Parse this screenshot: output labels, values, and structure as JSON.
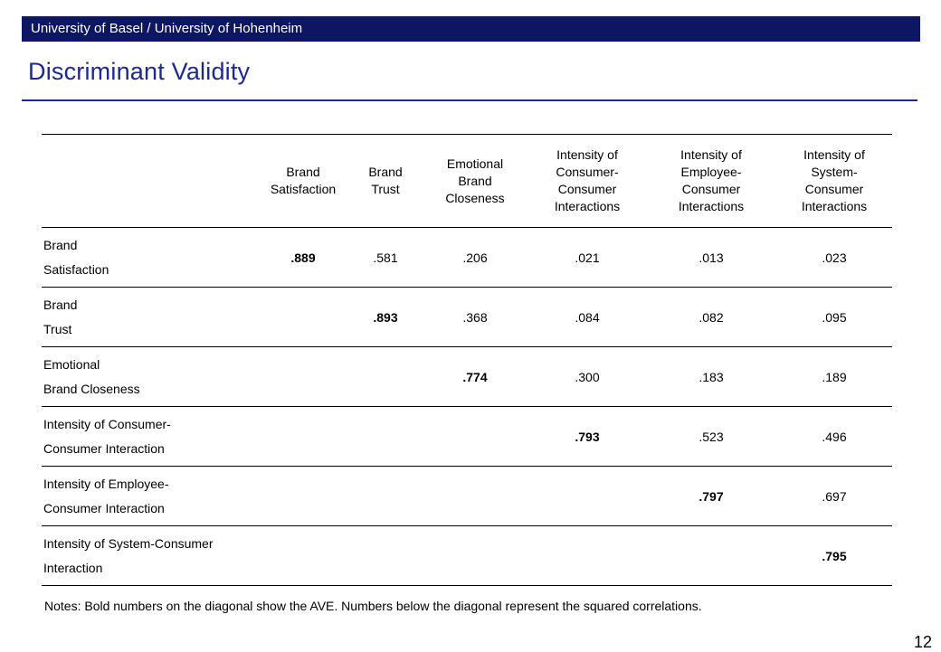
{
  "header": {
    "institution": "University of Basel / University of Hohenheim"
  },
  "slide": {
    "title": "Discriminant Validity",
    "page_number": "12"
  },
  "table": {
    "columns": [
      [
        "Brand",
        "Satisfaction"
      ],
      [
        "Brand",
        "Trust"
      ],
      [
        "Emotional",
        "Brand",
        "Closeness"
      ],
      [
        "Intensity of",
        "Consumer-",
        "Consumer",
        "Interactions"
      ],
      [
        "Intensity of",
        "Employee-",
        "Consumer",
        "Interactions"
      ],
      [
        "Intensity of",
        "System-",
        "Consumer",
        "Interactions"
      ]
    ],
    "rows": [
      {
        "label": [
          "Brand",
          "Satisfaction"
        ],
        "cells": [
          ".889",
          ".581",
          ".206",
          ".021",
          ".013",
          ".023"
        ],
        "diag": 0
      },
      {
        "label": [
          "Brand",
          "Trust"
        ],
        "cells": [
          "",
          ".893",
          ".368",
          ".084",
          ".082",
          ".095"
        ],
        "diag": 1
      },
      {
        "label": [
          "Emotional",
          "Brand Closeness"
        ],
        "cells": [
          "",
          "",
          ".774",
          ".300",
          ".183",
          ".189"
        ],
        "diag": 2
      },
      {
        "label": [
          "Intensity of Consumer-",
          "Consumer Interaction"
        ],
        "cells": [
          "",
          "",
          "",
          ".793",
          ".523",
          ".496"
        ],
        "diag": 3
      },
      {
        "label": [
          "Intensity of Employee-",
          "Consumer Interaction"
        ],
        "cells": [
          "",
          "",
          "",
          "",
          ".797",
          ".697"
        ],
        "diag": 4
      },
      {
        "label": [
          "Intensity of System-Consumer",
          "Interaction"
        ],
        "cells": [
          "",
          "",
          "",
          "",
          "",
          ".795"
        ],
        "diag": 5
      }
    ]
  },
  "notes": "Notes: Bold numbers on the diagonal show the AVE. Numbers below the diagonal represent the squared correlations."
}
